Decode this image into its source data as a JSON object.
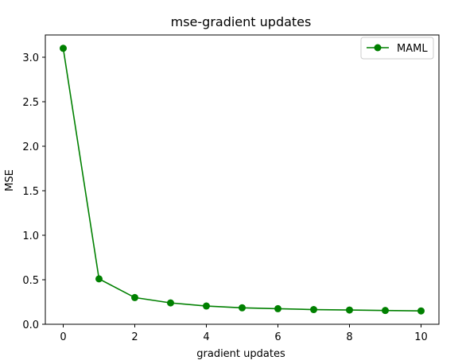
{
  "chart_data": {
    "type": "line",
    "title": "mse-gradient updates",
    "xlabel": "gradient updates",
    "ylabel": "MSE",
    "x": [
      0,
      1,
      2,
      3,
      4,
      5,
      6,
      7,
      8,
      9,
      10
    ],
    "xlim": [
      -0.5,
      10.5
    ],
    "ylim": [
      0,
      3.25
    ],
    "xticks": [
      0,
      2,
      4,
      6,
      8,
      10
    ],
    "xtick_labels": [
      "0",
      "2",
      "4",
      "6",
      "8",
      "10"
    ],
    "yticks": [
      0,
      0.5,
      1,
      1.5,
      2,
      2.5,
      3
    ],
    "ytick_labels": [
      "0.0",
      "0.5",
      "1.0",
      "1.5",
      "2.0",
      "2.5",
      "3.0"
    ],
    "grid": false,
    "legend_position": "top-right",
    "series": [
      {
        "name": "MAML",
        "color": "#008000",
        "marker": "circle",
        "values": [
          3.1,
          0.51,
          0.3,
          0.24,
          0.205,
          0.185,
          0.175,
          0.165,
          0.16,
          0.155,
          0.15
        ]
      }
    ]
  }
}
